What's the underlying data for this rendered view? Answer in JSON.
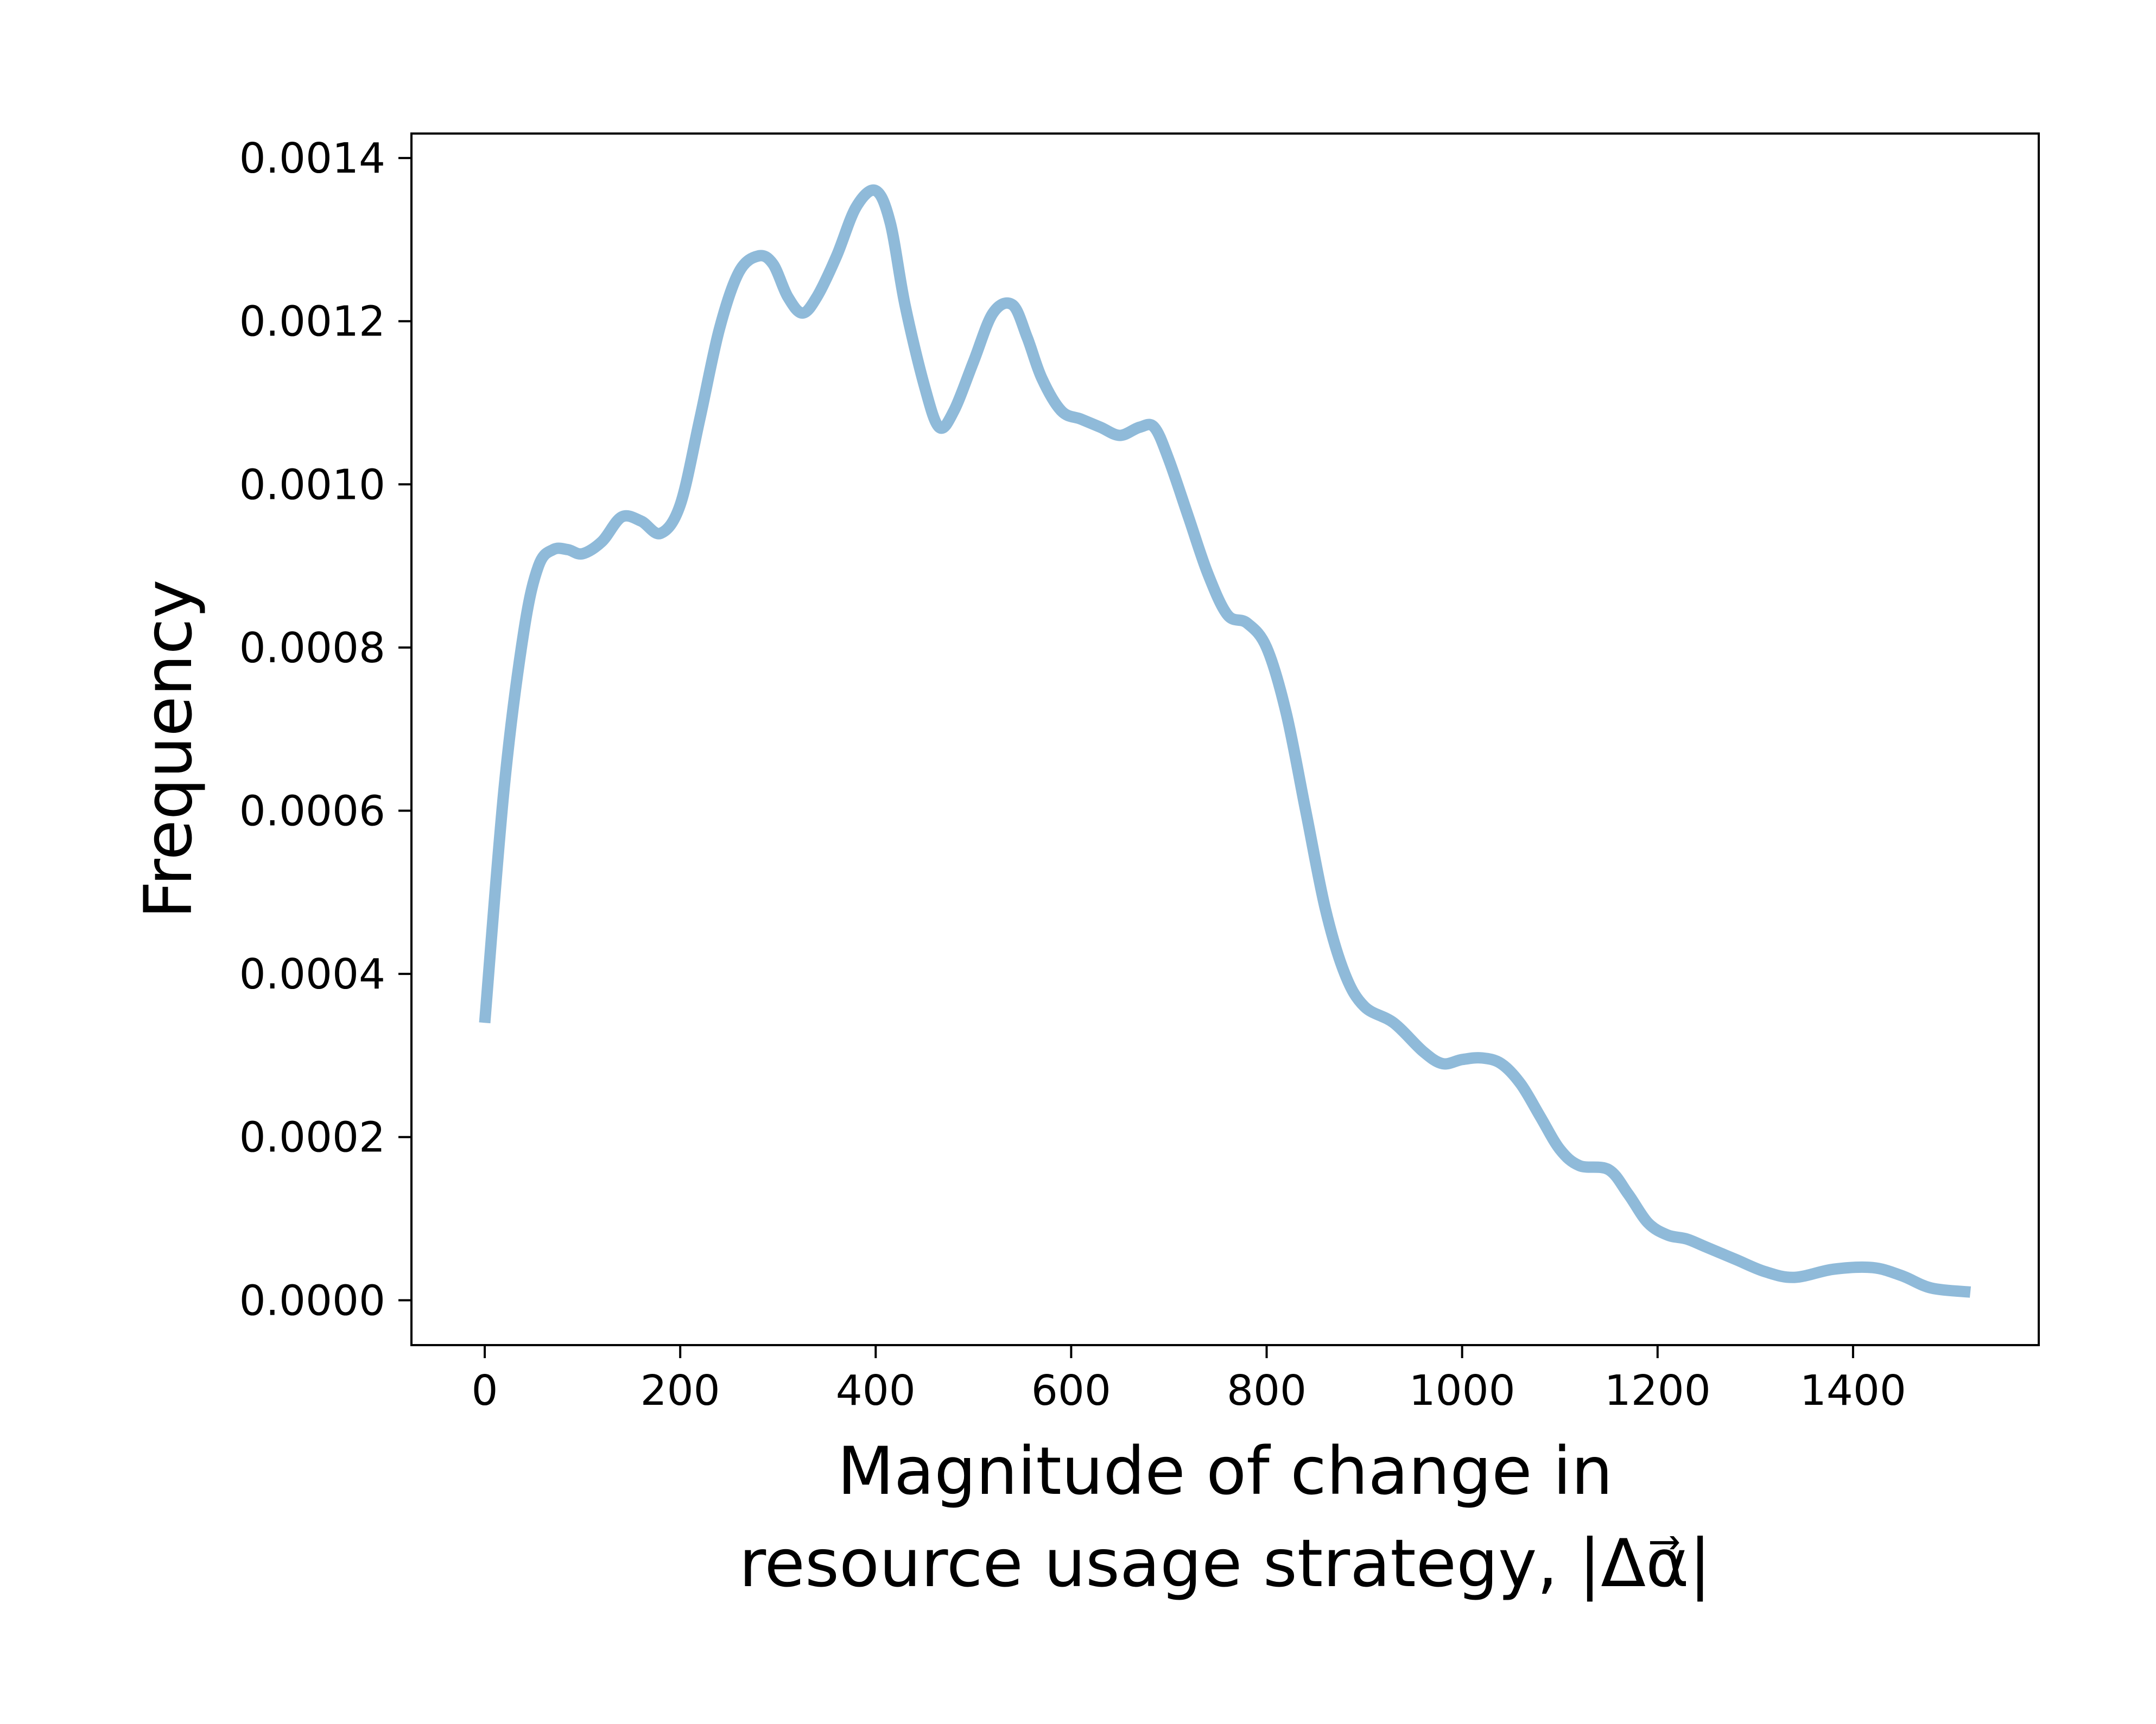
{
  "chart_data": {
    "type": "line",
    "title": "",
    "xlabel_line1": "Magnitude of change in",
    "xlabel_line2": "resource usage strategy, |Δα⃗|",
    "ylabel": "Frequency",
    "xlim": [
      -75,
      1590
    ],
    "ylim": [
      -5.5e-05,
      0.00143
    ],
    "x_ticks": [
      0,
      200,
      400,
      600,
      800,
      1000,
      1200,
      1400
    ],
    "x_tick_labels": [
      "0",
      "200",
      "400",
      "600",
      "800",
      "1000",
      "1200",
      "1400"
    ],
    "y_ticks": [
      0.0,
      0.0002,
      0.0004,
      0.0006,
      0.0008,
      0.001,
      0.0012,
      0.0014
    ],
    "y_tick_labels": [
      "0.0000",
      "0.0002",
      "0.0004",
      "0.0006",
      "0.0008",
      "0.0010",
      "0.0012",
      "0.0014"
    ],
    "grid": false,
    "line_color": "#8fbad9",
    "series": [
      {
        "x": [
          0,
          20,
          40,
          55,
          70,
          85,
          100,
          120,
          140,
          160,
          180,
          200,
          220,
          240,
          260,
          280,
          295,
          310,
          325,
          340,
          360,
          380,
          400,
          415,
          430,
          450,
          465,
          480,
          500,
          520,
          540,
          555,
          570,
          590,
          610,
          630,
          650,
          670,
          685,
          700,
          720,
          740,
          760,
          780,
          800,
          820,
          840,
          860,
          880,
          900,
          930,
          960,
          980,
          1000,
          1020,
          1040,
          1060,
          1080,
          1100,
          1120,
          1150,
          1170,
          1190,
          1210,
          1230,
          1250,
          1280,
          1310,
          1340,
          1380,
          1420,
          1450,
          1480,
          1520
        ],
        "y": [
          0.00034,
          0.00063,
          0.00082,
          0.0009,
          0.00092,
          0.00092,
          0.000915,
          0.00093,
          0.00096,
          0.000955,
          0.00094,
          0.000975,
          0.00108,
          0.00119,
          0.00126,
          0.00128,
          0.00127,
          0.00123,
          0.00121,
          0.00123,
          0.00128,
          0.00134,
          0.00136,
          0.00132,
          0.00122,
          0.00112,
          0.00107,
          0.00109,
          0.00115,
          0.00121,
          0.00122,
          0.00118,
          0.00113,
          0.00109,
          0.00108,
          0.00107,
          0.00106,
          0.00107,
          0.00107,
          0.00103,
          0.00096,
          0.00089,
          0.00084,
          0.00083,
          0.0008,
          0.00072,
          0.0006,
          0.00048,
          0.0004,
          0.00036,
          0.00034,
          0.000305,
          0.00029,
          0.000295,
          0.000297,
          0.00029,
          0.000265,
          0.000225,
          0.000185,
          0.000165,
          0.00016,
          0.00013,
          9.5e-05,
          8e-05,
          7.5e-05,
          6.5e-05,
          5e-05,
          3.5e-05,
          2.8e-05,
          3.8e-05,
          4e-05,
          3e-05,
          1.5e-05,
          1e-05
        ]
      }
    ]
  }
}
